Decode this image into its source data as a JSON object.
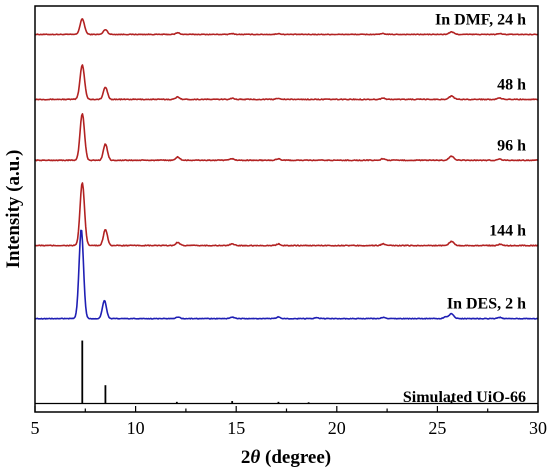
{
  "chart_data": {
    "type": "line",
    "xlabel_parts": [
      "2",
      "θ",
      " (degree)"
    ],
    "ylabel": "Intensity (a.u.)",
    "xlim": [
      5,
      30
    ],
    "x_ticks": [
      5,
      10,
      15,
      20,
      25,
      30
    ],
    "y_ticks": false,
    "grid": false,
    "legend": "none",
    "series": [
      {
        "name": "In DMF, 24 h",
        "color": "#B22222",
        "baseline": 0.93,
        "noise": 0.0008,
        "peaks": [
          {
            "x": 7.35,
            "h": 0.038,
            "w": 0.11
          },
          {
            "x": 8.5,
            "h": 0.012,
            "w": 0.1
          },
          {
            "x": 12.1,
            "h": 0.004,
            "w": 0.1
          },
          {
            "x": 14.8,
            "h": 0.002,
            "w": 0.1
          },
          {
            "x": 17.1,
            "h": 0.002,
            "w": 0.1
          },
          {
            "x": 22.3,
            "h": 0.002,
            "w": 0.1
          },
          {
            "x": 25.7,
            "h": 0.006,
            "w": 0.12
          },
          {
            "x": 28.1,
            "h": 0.002,
            "w": 0.1
          }
        ]
      },
      {
        "name": "48 h",
        "color": "#B22222",
        "baseline": 0.77,
        "noise": 0.001,
        "peaks": [
          {
            "x": 7.35,
            "h": 0.085,
            "w": 0.11
          },
          {
            "x": 8.5,
            "h": 0.03,
            "w": 0.1
          },
          {
            "x": 12.1,
            "h": 0.006,
            "w": 0.1
          },
          {
            "x": 14.8,
            "h": 0.003,
            "w": 0.1
          },
          {
            "x": 17.1,
            "h": 0.003,
            "w": 0.1
          },
          {
            "x": 22.3,
            "h": 0.003,
            "w": 0.1
          },
          {
            "x": 25.7,
            "h": 0.008,
            "w": 0.12
          },
          {
            "x": 28.1,
            "h": 0.003,
            "w": 0.1
          }
        ]
      },
      {
        "name": "96 h",
        "color": "#B22222",
        "baseline": 0.62,
        "noise": 0.001,
        "peaks": [
          {
            "x": 7.35,
            "h": 0.115,
            "w": 0.11
          },
          {
            "x": 8.5,
            "h": 0.04,
            "w": 0.1
          },
          {
            "x": 12.1,
            "h": 0.008,
            "w": 0.1
          },
          {
            "x": 14.8,
            "h": 0.004,
            "w": 0.1
          },
          {
            "x": 17.1,
            "h": 0.004,
            "w": 0.1
          },
          {
            "x": 22.3,
            "h": 0.004,
            "w": 0.1
          },
          {
            "x": 25.7,
            "h": 0.01,
            "w": 0.12
          },
          {
            "x": 28.1,
            "h": 0.003,
            "w": 0.1
          }
        ]
      },
      {
        "name": "144 h",
        "color": "#B22222",
        "baseline": 0.41,
        "noise": 0.001,
        "peaks": [
          {
            "x": 7.35,
            "h": 0.155,
            "w": 0.11
          },
          {
            "x": 8.5,
            "h": 0.04,
            "w": 0.1
          },
          {
            "x": 12.1,
            "h": 0.008,
            "w": 0.1
          },
          {
            "x": 14.8,
            "h": 0.004,
            "w": 0.1
          },
          {
            "x": 17.1,
            "h": 0.004,
            "w": 0.1
          },
          {
            "x": 22.3,
            "h": 0.004,
            "w": 0.1
          },
          {
            "x": 25.7,
            "h": 0.01,
            "w": 0.12
          },
          {
            "x": 28.1,
            "h": 0.003,
            "w": 0.1
          }
        ]
      },
      {
        "name": "In DES, 2 h",
        "color": "#1F1FB4",
        "baseline": 0.23,
        "noise": 0.0008,
        "peaks": [
          {
            "x": 7.3,
            "h": 0.22,
            "w": 0.11
          },
          {
            "x": 8.45,
            "h": 0.045,
            "w": 0.1
          },
          {
            "x": 12.1,
            "h": 0.004,
            "w": 0.1
          },
          {
            "x": 14.8,
            "h": 0.004,
            "w": 0.1
          },
          {
            "x": 17.1,
            "h": 0.004,
            "w": 0.1
          },
          {
            "x": 19.0,
            "h": 0.002,
            "w": 0.1
          },
          {
            "x": 22.3,
            "h": 0.003,
            "w": 0.1
          },
          {
            "x": 25.4,
            "h": 0.004,
            "w": 0.1
          },
          {
            "x": 25.7,
            "h": 0.012,
            "w": 0.12
          },
          {
            "x": 28.1,
            "h": 0.003,
            "w": 0.1
          }
        ]
      },
      {
        "name": "Simulated UiO-66",
        "color": "#000000",
        "type": "sticks",
        "baseline": 0.0,
        "sticks": [
          {
            "x": 7.35,
            "h": 0.155
          },
          {
            "x": 8.5,
            "h": 0.045
          },
          {
            "x": 12.05,
            "h": 0.004
          },
          {
            "x": 14.8,
            "h": 0.006
          },
          {
            "x": 17.1,
            "h": 0.004
          },
          {
            "x": 18.6,
            "h": 0.003
          },
          {
            "x": 25.7,
            "h": 0.008
          }
        ]
      }
    ]
  }
}
